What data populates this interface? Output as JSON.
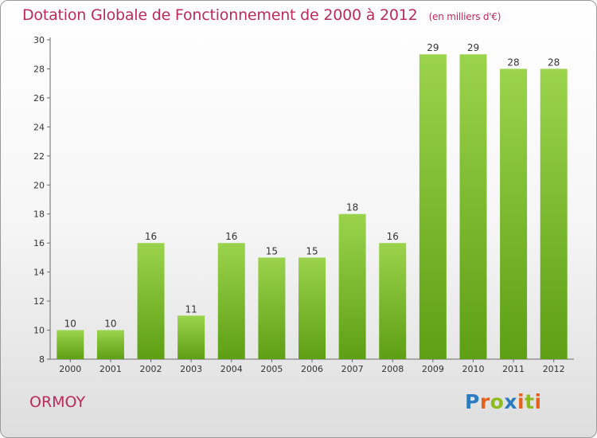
{
  "header": {
    "title": "Dotation Globale de Fonctionnement de 2000 à 2012",
    "unit": "(en milliers d'€)"
  },
  "footer": {
    "commune": "ORMOY",
    "logo_letters": [
      "P",
      "r",
      "o",
      "x",
      "i",
      "t",
      "i"
    ],
    "logo_colors": [
      "#2b7bc0",
      "#e5621e",
      "#8cbd1d",
      "#2b7bc0",
      "#e5621e",
      "#8cbd1d",
      "#e5621e"
    ]
  },
  "colors": {
    "bar_light": "#9bd44c",
    "bar_dark": "#5e9f14",
    "axis": "#6a6a6a",
    "accent": "#bb2a5a"
  },
  "chart_data": {
    "type": "bar",
    "title": "Dotation Globale de Fonctionnement de 2000 à 2012",
    "subtitle": "(en milliers d'€)",
    "categories": [
      "2000",
      "2001",
      "2002",
      "2003",
      "2004",
      "2005",
      "2006",
      "2007",
      "2008",
      "2009",
      "2010",
      "2011",
      "2012"
    ],
    "values": [
      10,
      10,
      16,
      11,
      16,
      15,
      15,
      18,
      16,
      29,
      29,
      28,
      28
    ],
    "ylim": [
      8,
      30
    ],
    "yticks": [
      8,
      10,
      12,
      14,
      16,
      18,
      20,
      22,
      24,
      26,
      28,
      30
    ],
    "xlabel": "",
    "ylabel": "",
    "grid": false,
    "data_labels": true
  }
}
